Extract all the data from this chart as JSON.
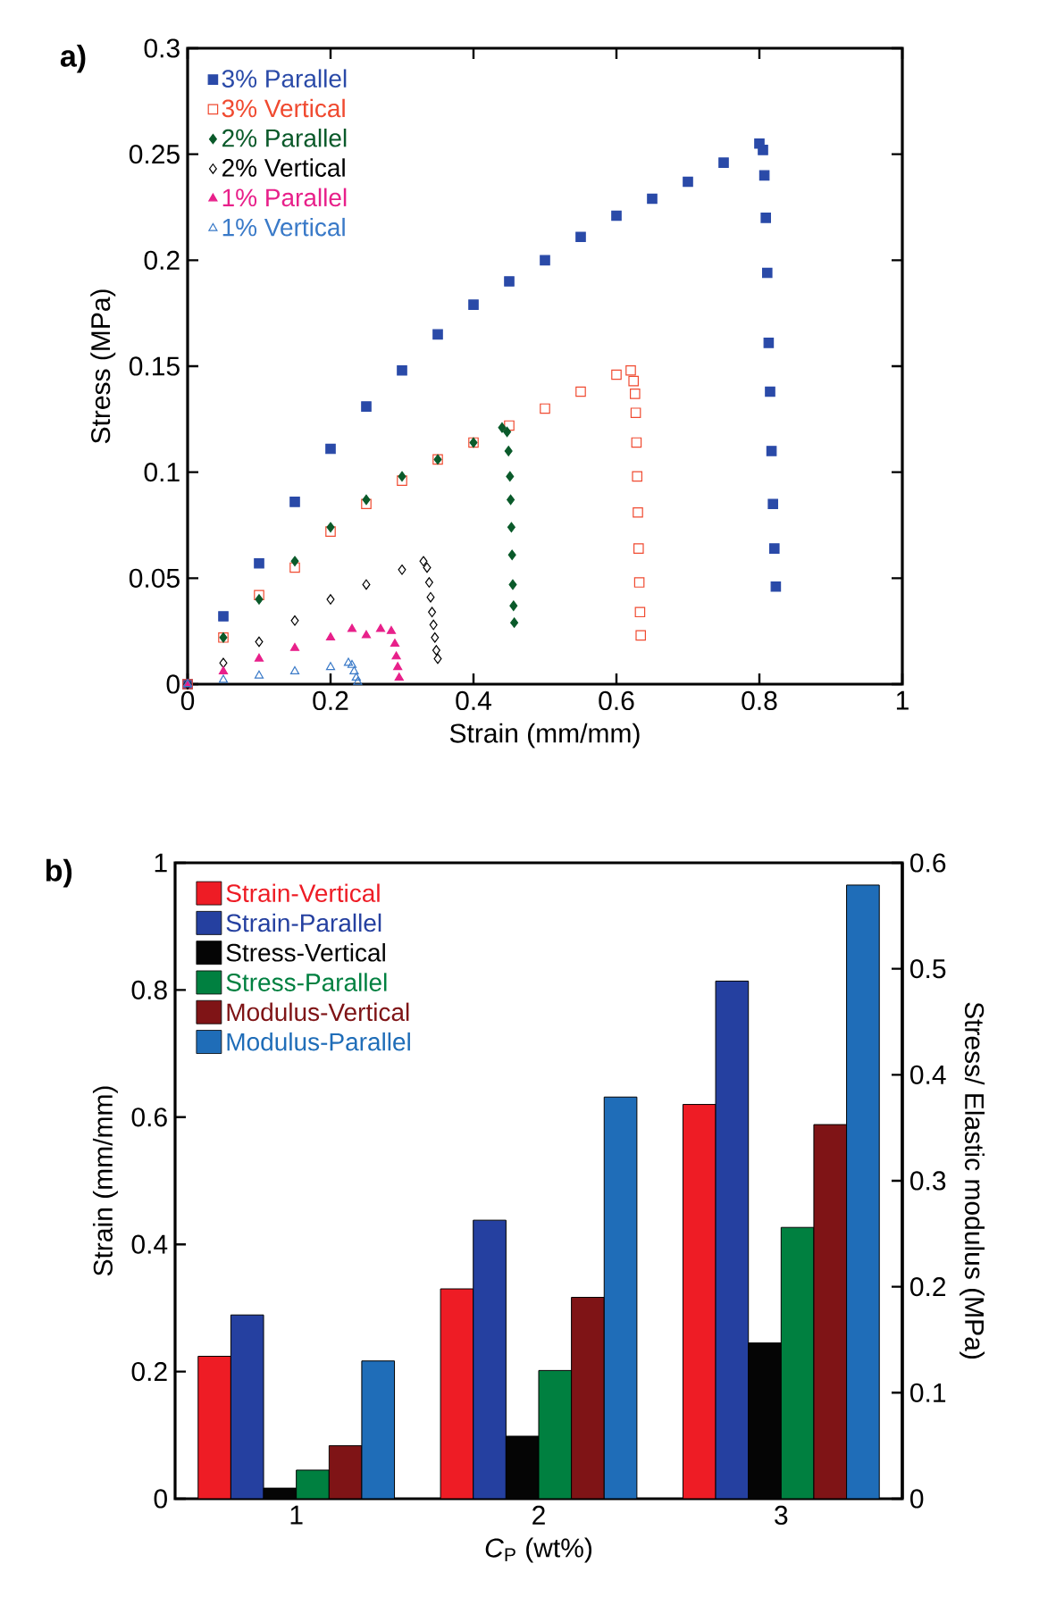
{
  "chart_data": [
    {
      "type": "scatter",
      "title": "a)",
      "xlabel": "Strain (mm/mm)",
      "ylabel": "Stress (MPa)",
      "xlim": [
        0,
        1
      ],
      "ylim": [
        0,
        0.3
      ],
      "xticks": [
        0,
        0.2,
        0.4,
        0.6,
        0.8,
        1
      ],
      "yticks": [
        0,
        0.05,
        0.1,
        0.15,
        0.2,
        0.25,
        0.3
      ],
      "legend": "top left",
      "grid": false,
      "series": [
        {
          "name": "3% Parallel",
          "color": "#2a4aa8",
          "marker": "square",
          "x": [
            0,
            0.05,
            0.1,
            0.15,
            0.2,
            0.25,
            0.3,
            0.35,
            0.4,
            0.45,
            0.5,
            0.55,
            0.6,
            0.65,
            0.7,
            0.75,
            0.8,
            0.805,
            0.807,
            0.809,
            0.811,
            0.813,
            0.815,
            0.817,
            0.819,
            0.821,
            0.823
          ],
          "values": [
            0,
            0.032,
            0.057,
            0.086,
            0.111,
            0.131,
            0.148,
            0.165,
            0.179,
            0.19,
            0.2,
            0.211,
            0.221,
            0.229,
            0.237,
            0.246,
            0.255,
            0.252,
            0.24,
            0.22,
            0.194,
            0.161,
            0.138,
            0.11,
            0.085,
            0.064,
            0.046
          ]
        },
        {
          "name": "3% Vertical",
          "color": "#f04a30",
          "marker": "square",
          "x": [
            0,
            0.05,
            0.1,
            0.15,
            0.2,
            0.25,
            0.3,
            0.35,
            0.4,
            0.45,
            0.5,
            0.55,
            0.6,
            0.62,
            0.624,
            0.626,
            0.627,
            0.628,
            0.629,
            0.63,
            0.631,
            0.632,
            0.633,
            0.634
          ],
          "values": [
            0,
            0.022,
            0.042,
            0.055,
            0.072,
            0.085,
            0.096,
            0.106,
            0.114,
            0.122,
            0.13,
            0.138,
            0.146,
            0.148,
            0.143,
            0.137,
            0.128,
            0.114,
            0.098,
            0.081,
            0.064,
            0.048,
            0.034,
            0.023
          ]
        },
        {
          "name": "2% Parallel",
          "color": "#0a5a2a",
          "marker": "diamond",
          "x": [
            0,
            0.05,
            0.1,
            0.15,
            0.2,
            0.25,
            0.3,
            0.35,
            0.4,
            0.44,
            0.447,
            0.449,
            0.451,
            0.452,
            0.453,
            0.454,
            0.455,
            0.456,
            0.457
          ],
          "values": [
            0,
            0.022,
            0.04,
            0.058,
            0.074,
            0.087,
            0.098,
            0.106,
            0.114,
            0.121,
            0.119,
            0.11,
            0.098,
            0.087,
            0.074,
            0.061,
            0.047,
            0.037,
            0.029
          ]
        },
        {
          "name": "2% Vertical",
          "color": "#000000",
          "marker": "diamond",
          "x": [
            0,
            0.05,
            0.1,
            0.15,
            0.2,
            0.25,
            0.3,
            0.33,
            0.335,
            0.338,
            0.34,
            0.342,
            0.344,
            0.346,
            0.348,
            0.35
          ],
          "values": [
            0,
            0.01,
            0.02,
            0.03,
            0.04,
            0.047,
            0.054,
            0.058,
            0.055,
            0.048,
            0.041,
            0.034,
            0.028,
            0.022,
            0.016,
            0.012
          ]
        },
        {
          "name": "1% Parallel",
          "color": "#e8208a",
          "marker": "triangle",
          "x": [
            0,
            0.05,
            0.1,
            0.15,
            0.2,
            0.23,
            0.25,
            0.27,
            0.285,
            0.29,
            0.292,
            0.294,
            0.296
          ],
          "values": [
            0,
            0.006,
            0.012,
            0.017,
            0.022,
            0.026,
            0.023,
            0.026,
            0.025,
            0.019,
            0.013,
            0.008,
            0.003
          ]
        },
        {
          "name": "1% Vertical",
          "color": "#3a7ac8",
          "marker": "triangle",
          "x": [
            0,
            0.05,
            0.1,
            0.15,
            0.2,
            0.225,
            0.23,
            0.233,
            0.236,
            0.238
          ],
          "values": [
            0,
            0.002,
            0.004,
            0.006,
            0.008,
            0.01,
            0.009,
            0.006,
            0.003,
            0.001
          ]
        }
      ]
    },
    {
      "type": "bar",
      "title": "b)",
      "xlabel": "*C*$_{P}$ (wt%)",
      "ylabel": "Strain (mm/mm)",
      "y2label": "Stress/ Elastic modulus (MPa)",
      "categories": [
        "1",
        "2",
        "3"
      ],
      "ylim": [
        0,
        1
      ],
      "yticks": [
        0,
        0.2,
        0.4,
        0.6,
        0.8,
        1
      ],
      "y2lim": [
        0,
        0.6
      ],
      "y2ticks": [
        0,
        0.1,
        0.2,
        0.3,
        0.4,
        0.5,
        0.6
      ],
      "legend": "top left",
      "grid": false,
      "series": [
        {
          "name": "Strain-Vertical",
          "color": "#ee1c25",
          "values": [
            0.224,
            0.33,
            0.62
          ]
        },
        {
          "name": "Strain-Parallel",
          "color": "#2540a0",
          "values": [
            0.289,
            0.438,
            0.814
          ]
        },
        {
          "name": "Stress-Vertical",
          "color": "#050505",
          "axis": "y2",
          "values": [
            0.01,
            0.059,
            0.147
          ]
        },
        {
          "name": "Stress-Parallel",
          "color": "#008040",
          "axis": "y2",
          "values": [
            0.027,
            0.121,
            0.256
          ]
        },
        {
          "name": "Modulus-Vertical",
          "color": "#7f1416",
          "axis": "y2",
          "values": [
            0.05,
            0.19,
            0.353
          ]
        },
        {
          "name": "Modulus-Parallel",
          "color": "#1f6db8",
          "axis": "y2",
          "values": [
            0.13,
            0.379,
            0.579
          ]
        }
      ]
    }
  ]
}
